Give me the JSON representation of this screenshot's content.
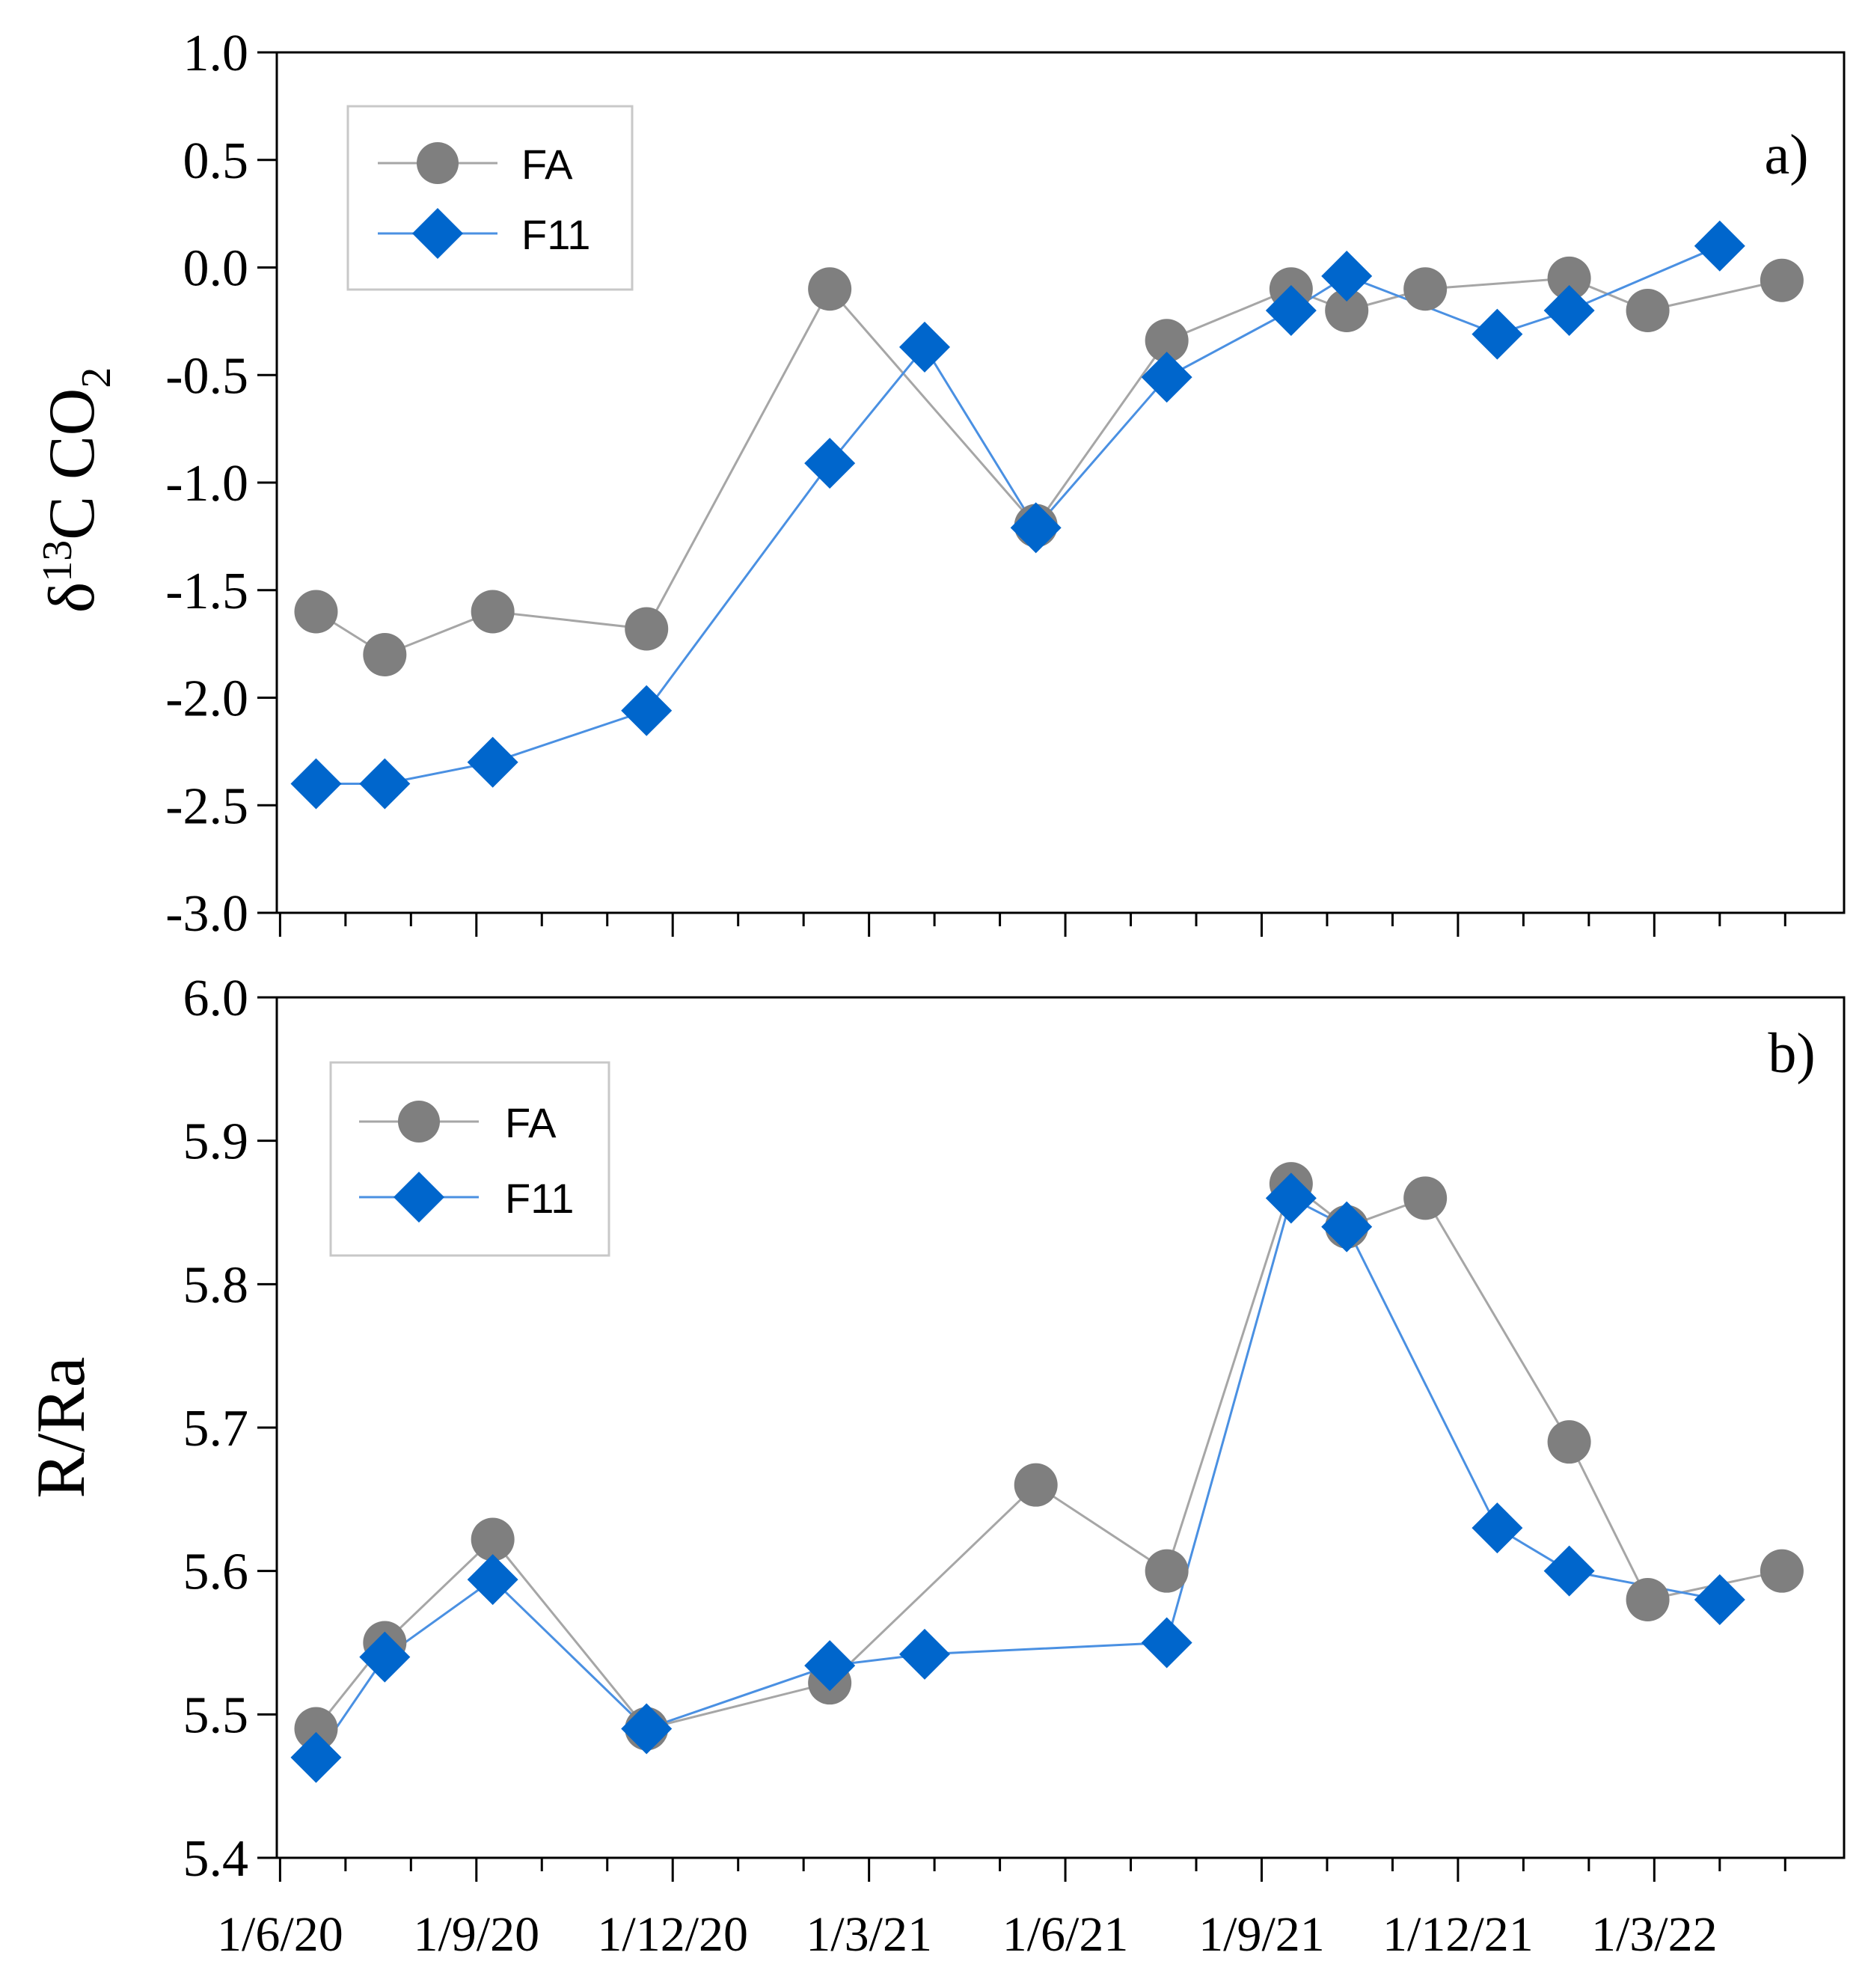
{
  "x_axis": {
    "tick_labels": [
      "1/6/20",
      "1/9/20",
      "1/12/20",
      "1/3/21",
      "1/6/21",
      "1/9/21",
      "1/12/21",
      "1/3/22"
    ],
    "major_ticks_months": [
      0,
      3,
      6,
      9,
      12,
      15,
      18,
      21
    ],
    "minor_ticks_months": [
      1,
      2,
      4,
      5,
      7,
      8,
      10,
      11,
      13,
      14,
      16,
      17,
      19,
      20,
      22,
      23
    ],
    "range_months": [
      -0.05,
      23.9
    ],
    "month_origin": "2020-06-01"
  },
  "colors": {
    "FA": "#7f7f7f",
    "F11": "#0066cc",
    "FA_line": "#a6a6a6",
    "F11_line": "#4a90e2"
  },
  "chart_data": [
    {
      "type": "line",
      "panel_label": "a)",
      "ylabel": "δ13C CO2",
      "ylabel_parts": {
        "delta": "δ",
        "sup": "13",
        "mid": "C CO",
        "sub": "2"
      },
      "ylim": [
        -3.0,
        1.0
      ],
      "yticks": [
        -3.0,
        -2.5,
        -2.0,
        -1.5,
        -1.0,
        -0.5,
        0.0,
        0.5,
        1.0
      ],
      "ytick_labels": [
        "-3.0",
        "-2.5",
        "-2.0",
        "-1.5",
        "-1.0",
        "-0.5",
        "0.0",
        "0.5",
        "1.0"
      ],
      "legend": {
        "position": "top-left",
        "entries": [
          "FA",
          "F11"
        ]
      },
      "series": [
        {
          "name": "FA",
          "marker": "circle",
          "x": [
            0.55,
            1.6,
            3.25,
            5.6,
            8.4,
            11.55,
            13.55,
            15.45,
            16.3,
            17.5,
            19.7,
            20.9,
            22.95
          ],
          "y": [
            -1.6,
            -1.8,
            -1.6,
            -1.68,
            -0.1,
            -1.2,
            -0.34,
            -0.1,
            -0.2,
            -0.1,
            -0.05,
            -0.2,
            -0.06
          ]
        },
        {
          "name": "F11",
          "marker": "diamond",
          "x": [
            0.55,
            1.6,
            3.25,
            5.6,
            8.4,
            9.85,
            11.55,
            13.55,
            15.45,
            16.3,
            18.6,
            19.7,
            22.0
          ],
          "y": [
            -2.4,
            -2.4,
            -2.3,
            -2.06,
            -0.91,
            -0.37,
            -1.21,
            -0.51,
            -0.2,
            -0.04,
            -0.31,
            -0.2,
            0.1
          ]
        }
      ]
    },
    {
      "type": "line",
      "panel_label": "b)",
      "ylabel": "R/Ra",
      "ylim": [
        5.4,
        6.0
      ],
      "yticks": [
        5.4,
        5.5,
        5.6,
        5.7,
        5.8,
        5.9,
        6.0
      ],
      "ytick_labels": [
        "5.4",
        "5.5",
        "5.6",
        "5.7",
        "5.8",
        "5.9",
        "6.0"
      ],
      "legend": {
        "position": "top-left",
        "entries": [
          "FA",
          "F11"
        ]
      },
      "series": [
        {
          "name": "FA",
          "marker": "circle",
          "x": [
            0.55,
            1.6,
            3.25,
            5.6,
            8.4,
            11.55,
            13.55,
            15.45,
            16.3,
            17.5,
            19.7,
            20.9,
            22.95
          ],
          "y": [
            5.49,
            5.55,
            5.622,
            5.49,
            5.522,
            5.66,
            5.6,
            5.87,
            5.84,
            5.86,
            5.69,
            5.58,
            5.6
          ]
        },
        {
          "name": "F11",
          "marker": "diamond",
          "x": [
            0.55,
            1.6,
            3.25,
            5.6,
            8.4,
            9.85,
            13.55,
            15.45,
            16.3,
            18.6,
            19.7,
            22.0
          ],
          "y": [
            5.47,
            5.54,
            5.594,
            5.49,
            5.534,
            5.542,
            5.55,
            5.86,
            5.84,
            5.63,
            5.6,
            5.58
          ]
        }
      ]
    }
  ]
}
